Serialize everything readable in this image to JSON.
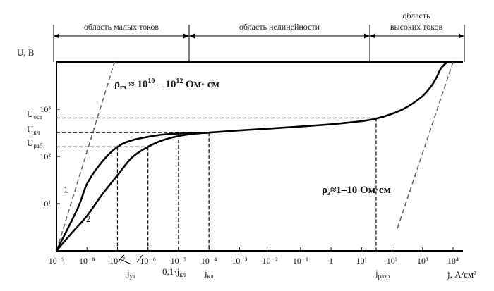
{
  "chart_data": {
    "type": "line",
    "title": "",
    "x_axis": {
      "label": "j, А/см²",
      "scale": "log",
      "range": [
        1e-09,
        10000
      ],
      "tick_labels": [
        "10⁻⁹",
        "10⁻⁸",
        "10⁻⁷",
        "10⁻⁶",
        "10⁻⁵",
        "10⁻⁴",
        "10⁻³",
        "10⁻²",
        "10⁻¹",
        "1",
        "10¹",
        "10²",
        "10³",
        "10⁴"
      ],
      "tick_exponents": [
        -9,
        -8,
        -7,
        -6,
        -5,
        -4,
        -3,
        -2,
        -1,
        0,
        1,
        2,
        3,
        4
      ]
    },
    "y_axis": {
      "label": "U, В",
      "scale": "log",
      "range": [
        1,
        10000
      ],
      "tick_labels": [
        "10¹",
        "10²",
        "10³"
      ],
      "tick_values": [
        10,
        100,
        1000
      ]
    },
    "regions": [
      {
        "label": "область малых токов",
        "x_range": [
          1e-09,
          1e-05
        ]
      },
      {
        "label": "область нелинейности",
        "x_range": [
          1e-05,
          10
        ]
      },
      {
        "label": "область высоких токов",
        "x_range": [
          10,
          10000
        ]
      }
    ],
    "series": [
      {
        "name": "1",
        "x": [
          1e-09,
          5e-09,
          1e-08,
          3e-08,
          1e-07,
          3e-07,
          1e-06,
          3e-06,
          1e-05,
          3e-05,
          0.0001,
          0.001,
          0.01,
          0.1,
          1,
          10,
          30,
          100,
          300,
          1000,
          2000,
          3000,
          4000,
          6000
        ],
        "y": [
          1,
          8,
          26,
          75,
          160,
          220,
          260,
          290,
          305,
          310,
          320,
          355,
          390,
          430,
          480,
          560,
          630,
          800,
          1100,
          1900,
          3200,
          5000,
          7300,
          9600
        ]
      },
      {
        "name": "2",
        "x": [
          1e-09,
          3e-09,
          1e-08,
          3e-08,
          1e-07,
          3e-07,
          1e-06,
          3e-06,
          1e-05,
          3e-05,
          0.0001
        ],
        "y": [
          1,
          2.3,
          5.5,
          15,
          40,
          95,
          160,
          220,
          270,
          300,
          320
        ]
      }
    ],
    "reference_lines": [
      {
        "label": "U_ост",
        "value": 650,
        "x_end": 30
      },
      {
        "label": "U_кл",
        "value": 320,
        "x_end": 0.0001
      },
      {
        "label": "U_раб",
        "value": 160,
        "x_end": 1e-06
      }
    ],
    "vertical_markers": [
      {
        "label": "j_ут",
        "x": [
          1e-07,
          1e-06
        ]
      },
      {
        "label": "0,1·j_кл",
        "x": 1e-05
      },
      {
        "label": "j_кл",
        "x": 0.0001
      },
      {
        "label": "j_разр",
        "x": 30
      }
    ],
    "annotations": [
      {
        "text": "ρгз ≈ 10¹⁰ – 10¹² Ом·см",
        "slope_line": {
          "x": [
            1e-09,
            8e-08
          ],
          "y": [
            1,
            10000
          ]
        }
      },
      {
        "text": "ρз ≈ 1–10 Ом·см",
        "slope_line": {
          "x": [
            150,
            10000
          ],
          "y": [
            3,
            10000
          ]
        }
      }
    ],
    "grid": false,
    "legend": "curve numbers labeled on plot"
  }
}
